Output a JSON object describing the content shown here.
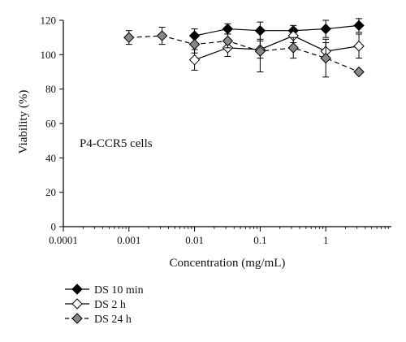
{
  "chart_data": {
    "type": "line",
    "xlabel": "Concentration (mg/mL)",
    "ylabel": "Viability (%)",
    "xscale": "log",
    "xlim": [
      0.0001,
      10
    ],
    "ylim": [
      0,
      120
    ],
    "x_ticks": [
      0.0001,
      0.001,
      0.01,
      0.1,
      1
    ],
    "x_tick_labels": [
      "0.0001",
      "0.001",
      "0.01",
      "0.1",
      "1"
    ],
    "y_ticks": [
      0,
      20,
      40,
      60,
      80,
      100,
      120
    ],
    "y_tick_labels": [
      "0",
      "20",
      "40",
      "60",
      "80",
      "100",
      "120"
    ],
    "annotation": "P4-CCR5 cells",
    "grid": false,
    "legend_position": "bottom-left",
    "series": [
      {
        "name": "DS 10 min",
        "marker": "diamond",
        "fill": "#000000",
        "line_style": "solid",
        "x": [
          0.01,
          0.032,
          0.1,
          0.32,
          1,
          3.2
        ],
        "y": [
          111,
          115,
          114,
          114,
          115,
          117
        ],
        "err": [
          4,
          3,
          5,
          3,
          5,
          4
        ]
      },
      {
        "name": "DS 2 h",
        "marker": "diamond",
        "fill": "#ffffff",
        "line_style": "solid",
        "x": [
          0.01,
          0.032,
          0.1,
          0.32,
          1,
          3.2
        ],
        "y": [
          97,
          104,
          103,
          111,
          102,
          105
        ],
        "err": [
          6,
          5,
          5,
          4,
          5,
          7
        ]
      },
      {
        "name": "DS 24 h",
        "marker": "diamond",
        "fill": "#888888",
        "line_style": "dashed",
        "x": [
          0.001,
          0.0032,
          0.01,
          0.032,
          0.1,
          0.32,
          1,
          3.2
        ],
        "y": [
          110,
          111,
          106,
          108,
          102,
          104,
          98,
          90
        ],
        "err": [
          4,
          5,
          5,
          4,
          12,
          6,
          11,
          0
        ]
      }
    ]
  }
}
